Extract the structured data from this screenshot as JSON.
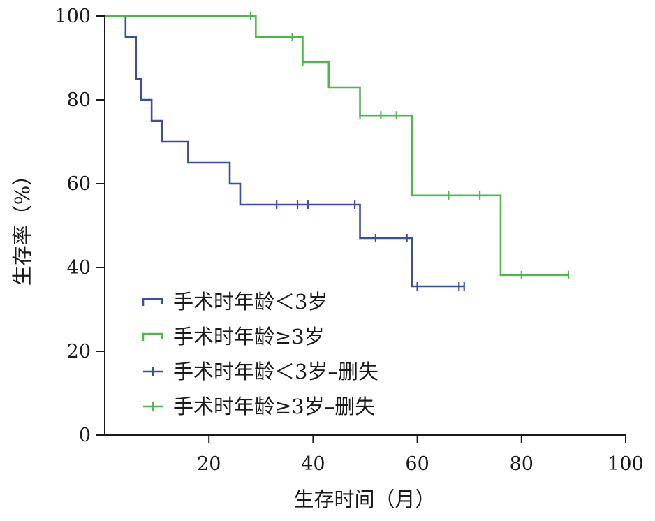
{
  "chart_data": {
    "type": "line",
    "step": true,
    "xlabel": "生存时间（月）",
    "ylabel": "生存率（%）",
    "xlim": [
      0,
      100
    ],
    "ylim": [
      0,
      100
    ],
    "xticks": [
      20,
      40,
      60,
      80,
      100
    ],
    "yticks": [
      0,
      20,
      40,
      60,
      80,
      100
    ],
    "grid": false,
    "legend_position": "bottom-left",
    "legend": [
      {
        "label": "手术时年龄＜3岁",
        "kind": "step",
        "series": 0
      },
      {
        "label": "手术时年龄≥3岁",
        "kind": "step",
        "series": 1
      },
      {
        "label": "手术时年龄＜3岁–删失",
        "kind": "censor",
        "series": 0
      },
      {
        "label": "手术时年龄≥3岁–删失",
        "kind": "censor",
        "series": 1
      }
    ],
    "series": [
      {
        "name": "手术时年龄＜3岁",
        "color": "#3a4fa0",
        "steps": [
          [
            0,
            100
          ],
          [
            4,
            95
          ],
          [
            6,
            85
          ],
          [
            7,
            80
          ],
          [
            9,
            75
          ],
          [
            11,
            70
          ],
          [
            16,
            65
          ],
          [
            24,
            60
          ],
          [
            26,
            55
          ],
          [
            49,
            47
          ],
          [
            59,
            35.5
          ],
          [
            69,
            35.5
          ]
        ],
        "censored": [
          [
            33,
            55
          ],
          [
            37,
            55
          ],
          [
            39,
            55
          ],
          [
            48,
            55
          ],
          [
            52,
            47
          ],
          [
            58,
            47
          ],
          [
            60,
            35.5
          ],
          [
            68,
            35.5
          ],
          [
            69,
            35.5
          ]
        ]
      },
      {
        "name": "手术时年龄≥3岁",
        "color": "#4cb848",
        "steps": [
          [
            0,
            100
          ],
          [
            29,
            95
          ],
          [
            38,
            89
          ],
          [
            43,
            83
          ],
          [
            49,
            76.3
          ],
          [
            59,
            57.2
          ],
          [
            76,
            38.2
          ],
          [
            89,
            38.2
          ]
        ],
        "censored": [
          [
            28,
            100
          ],
          [
            36,
            95
          ],
          [
            38,
            89
          ],
          [
            49,
            76.3
          ],
          [
            53,
            76.3
          ],
          [
            56,
            76.3
          ],
          [
            66,
            57.2
          ],
          [
            72,
            57.2
          ],
          [
            80,
            38.2
          ],
          [
            89,
            38.2
          ]
        ]
      }
    ]
  }
}
